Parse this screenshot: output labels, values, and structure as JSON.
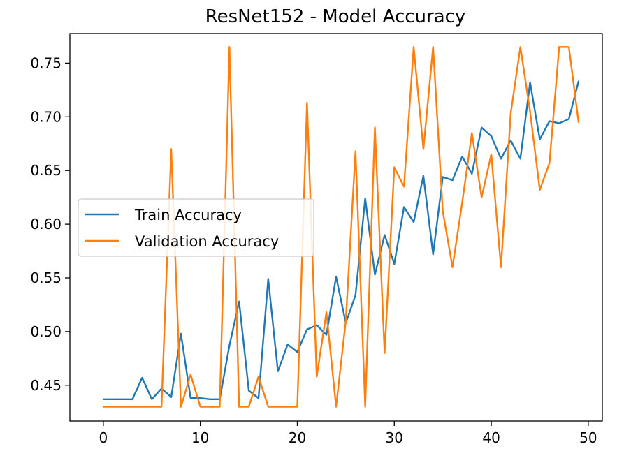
{
  "chart_data": {
    "type": "line",
    "title": "ResNet152 - Model Accuracy",
    "xlabel": "",
    "ylabel": "",
    "xlim": [
      -3.45,
      51.45
    ],
    "ylim": [
      0.4167,
      0.7776
    ],
    "xticks": [
      0,
      10,
      20,
      30,
      40,
      50
    ],
    "yticks": [
      0.45,
      0.5,
      0.55,
      0.6,
      0.65,
      0.7,
      0.75
    ],
    "ytick_labels": [
      "0.45",
      "0.50",
      "0.55",
      "0.60",
      "0.65",
      "0.70",
      "0.75"
    ],
    "grid": false,
    "legend_position": "center-left",
    "x": [
      0,
      1,
      2,
      3,
      4,
      5,
      6,
      7,
      8,
      9,
      10,
      11,
      12,
      13,
      14,
      15,
      16,
      17,
      18,
      19,
      20,
      21,
      22,
      23,
      24,
      25,
      26,
      27,
      28,
      29,
      30,
      31,
      32,
      33,
      34,
      35,
      36,
      37,
      38,
      39,
      40,
      41,
      42,
      43,
      44,
      45,
      46,
      47,
      48,
      49
    ],
    "series": [
      {
        "name": "Train Accuracy",
        "color": "#1f77b4",
        "values": [
          0.437,
          0.437,
          0.437,
          0.437,
          0.457,
          0.437,
          0.447,
          0.439,
          0.498,
          0.438,
          0.438,
          0.437,
          0.437,
          0.487,
          0.528,
          0.445,
          0.438,
          0.549,
          0.463,
          0.488,
          0.481,
          0.502,
          0.506,
          0.497,
          0.551,
          0.508,
          0.534,
          0.624,
          0.553,
          0.59,
          0.563,
          0.616,
          0.602,
          0.645,
          0.572,
          0.644,
          0.641,
          0.663,
          0.647,
          0.69,
          0.682,
          0.661,
          0.678,
          0.661,
          0.732,
          0.679,
          0.696,
          0.694,
          0.698,
          0.733
        ]
      },
      {
        "name": "Validation Accuracy",
        "color": "#ff7f0e",
        "values": [
          0.43,
          0.43,
          0.43,
          0.43,
          0.43,
          0.43,
          0.43,
          0.67,
          0.43,
          0.46,
          0.43,
          0.43,
          0.43,
          0.765,
          0.43,
          0.43,
          0.458,
          0.43,
          0.43,
          0.43,
          0.43,
          0.713,
          0.458,
          0.518,
          0.43,
          0.51,
          0.668,
          0.43,
          0.69,
          0.48,
          0.653,
          0.635,
          0.765,
          0.67,
          0.765,
          0.612,
          0.56,
          0.62,
          0.685,
          0.625,
          0.665,
          0.56,
          0.703,
          0.765,
          0.705,
          0.632,
          0.657,
          0.765,
          0.765,
          0.695
        ]
      }
    ]
  }
}
